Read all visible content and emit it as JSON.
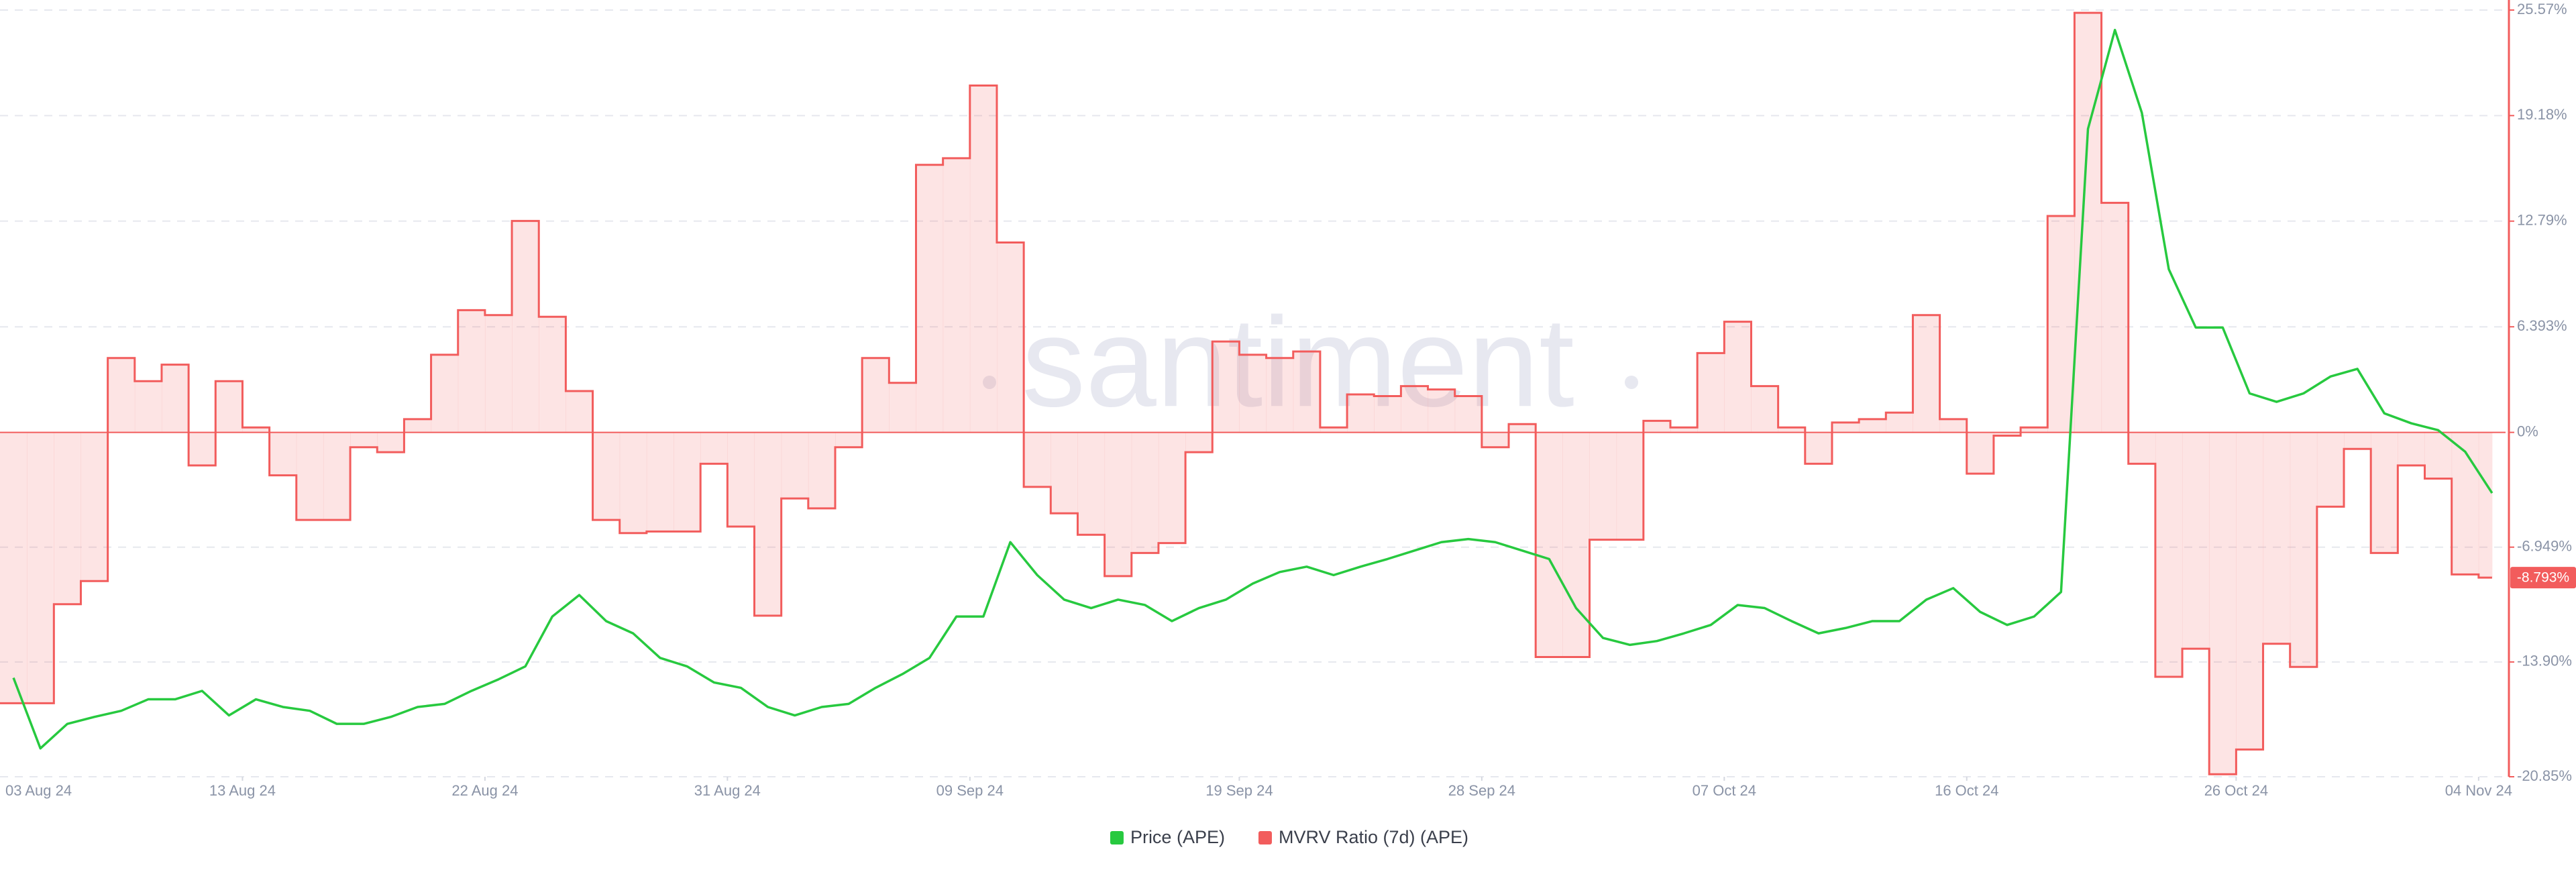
{
  "chart_data": {
    "type": "line",
    "watermark": "santiment",
    "x": [
      "2024-08-04",
      "2024-08-05",
      "2024-08-06",
      "2024-08-07",
      "2024-08-08",
      "2024-08-09",
      "2024-08-10",
      "2024-08-11",
      "2024-08-12",
      "2024-08-13",
      "2024-08-14",
      "2024-08-15",
      "2024-08-16",
      "2024-08-17",
      "2024-08-18",
      "2024-08-19",
      "2024-08-20",
      "2024-08-21",
      "2024-08-22",
      "2024-08-23",
      "2024-08-24",
      "2024-08-25",
      "2024-08-26",
      "2024-08-27",
      "2024-08-28",
      "2024-08-29",
      "2024-08-30",
      "2024-08-31",
      "2024-09-01",
      "2024-09-02",
      "2024-09-03",
      "2024-09-04",
      "2024-09-05",
      "2024-09-06",
      "2024-09-07",
      "2024-09-08",
      "2024-09-09",
      "2024-09-10",
      "2024-09-11",
      "2024-09-12",
      "2024-09-13",
      "2024-09-14",
      "2024-09-15",
      "2024-09-16",
      "2024-09-17",
      "2024-09-18",
      "2024-09-19",
      "2024-09-20",
      "2024-09-21",
      "2024-09-22",
      "2024-09-23",
      "2024-09-24",
      "2024-09-25",
      "2024-09-26",
      "2024-09-27",
      "2024-09-28",
      "2024-09-29",
      "2024-09-30",
      "2024-10-01",
      "2024-10-02",
      "2024-10-03",
      "2024-10-04",
      "2024-10-05",
      "2024-10-06",
      "2024-10-07",
      "2024-10-08",
      "2024-10-09",
      "2024-10-10",
      "2024-10-11",
      "2024-10-12",
      "2024-10-13",
      "2024-10-14",
      "2024-10-15",
      "2024-10-16",
      "2024-10-17",
      "2024-10-18",
      "2024-10-19",
      "2024-10-20",
      "2024-10-21",
      "2024-10-22",
      "2024-10-23",
      "2024-10-24",
      "2024-10-25",
      "2024-10-26",
      "2024-10-27",
      "2024-10-28",
      "2024-10-29",
      "2024-10-30",
      "2024-10-31",
      "2024-11-01",
      "2024-11-02",
      "2024-11-03",
      "2024-11-04"
    ],
    "xlim": [
      "2024-08-04",
      "2024-11-05"
    ],
    "xticks": [
      {
        "value": "2024-08-03",
        "label": "03 Aug 24"
      },
      {
        "value": "2024-08-13",
        "label": "13 Aug 24"
      },
      {
        "value": "2024-08-22",
        "label": "22 Aug 24"
      },
      {
        "value": "2024-08-31",
        "label": "31 Aug 24"
      },
      {
        "value": "2024-09-09",
        "label": "09 Sep 24"
      },
      {
        "value": "2024-09-19",
        "label": "19 Sep 24"
      },
      {
        "value": "2024-09-28",
        "label": "28 Sep 24"
      },
      {
        "value": "2024-10-07",
        "label": "07 Oct 24"
      },
      {
        "value": "2024-10-16",
        "label": "16 Oct 24"
      },
      {
        "value": "2024-10-26",
        "label": "26 Oct 24"
      },
      {
        "value": "2024-11-04",
        "label": "04 Nov 24"
      }
    ],
    "ylim": [
      -20.85,
      25.57
    ],
    "yticks": [
      {
        "value": 25.57,
        "label": "25.57%"
      },
      {
        "value": 19.18,
        "label": "19.18%"
      },
      {
        "value": 12.79,
        "label": "12.79%"
      },
      {
        "value": 6.393,
        "label": "6.393%"
      },
      {
        "value": 0,
        "label": "0%"
      },
      {
        "value": -6.949,
        "label": "-6.949%"
      },
      {
        "value": -13.9,
        "label": "-13.90%"
      },
      {
        "value": -20.85,
        "label": "-20.85%"
      }
    ],
    "y2lim": [
      0.6,
      1.6
    ],
    "grid": true,
    "legend": "bottom",
    "series": [
      {
        "name": "Price (APE)",
        "color": "#27c93f",
        "axis": "y2",
        "style": "line",
        "values": [
          0.729,
          0.637,
          0.669,
          0.678,
          0.686,
          0.701,
          0.701,
          0.712,
          0.68,
          0.701,
          0.691,
          0.686,
          0.669,
          0.669,
          0.678,
          0.691,
          0.695,
          0.712,
          0.727,
          0.744,
          0.809,
          0.837,
          0.803,
          0.787,
          0.755,
          0.744,
          0.723,
          0.716,
          0.691,
          0.68,
          0.691,
          0.695,
          0.716,
          0.734,
          0.755,
          0.809,
          0.809,
          0.906,
          0.863,
          0.831,
          0.82,
          0.831,
          0.824,
          0.803,
          0.82,
          0.831,
          0.852,
          0.867,
          0.874,
          0.863,
          0.874,
          0.884,
          0.895,
          0.906,
          0.91,
          0.906,
          0.895,
          0.884,
          0.82,
          0.781,
          0.772,
          0.777,
          0.787,
          0.798,
          0.824,
          0.82,
          0.803,
          0.787,
          0.794,
          0.803,
          0.803,
          0.831,
          0.846,
          0.815,
          0.798,
          0.809,
          0.841,
          1.445,
          1.574,
          1.466,
          1.262,
          1.186,
          1.186,
          1.1,
          1.089,
          1.1,
          1.122,
          1.132,
          1.074,
          1.061,
          1.052,
          1.024,
          0.97
        ]
      },
      {
        "name": "MVRV Ratio (7d) (APE)",
        "color": "#f25c5c",
        "axis": "y",
        "style": "step-area",
        "values": [
          -16.4,
          -16.4,
          -10.4,
          -9.0,
          4.5,
          3.1,
          4.1,
          -2.0,
          3.1,
          0.3,
          -2.6,
          -5.3,
          -5.3,
          -0.9,
          -1.2,
          0.8,
          4.7,
          7.4,
          7.1,
          12.8,
          7.0,
          2.5,
          -5.3,
          -6.1,
          -6.0,
          -6.0,
          -1.9,
          -5.7,
          -11.1,
          -4.0,
          -4.6,
          -0.9,
          4.5,
          3.0,
          16.2,
          16.6,
          21.0,
          11.5,
          -3.3,
          -4.9,
          -6.2,
          -8.7,
          -7.3,
          -6.7,
          -1.2,
          5.5,
          4.7,
          4.5,
          4.9,
          0.3,
          2.3,
          2.2,
          2.8,
          2.6,
          2.2,
          -0.9,
          0.5,
          -13.6,
          -13.6,
          -6.5,
          -6.5,
          0.7,
          0.3,
          4.8,
          6.7,
          2.8,
          0.3,
          -1.9,
          0.6,
          0.8,
          1.2,
          7.1,
          0.8,
          -2.5,
          -0.2,
          0.3,
          13.1,
          25.4,
          13.9,
          -1.9,
          -14.8,
          -13.1,
          -20.7,
          -19.2,
          -12.8,
          -14.2,
          -4.5,
          -1.0,
          -7.3,
          -2.0,
          -2.8,
          -8.6,
          -8.793
        ],
        "value_labels": [
          null,
          null,
          null,
          null,
          null,
          null,
          null,
          null,
          null,
          null,
          null,
          null,
          null,
          null,
          null,
          null,
          null,
          null,
          null,
          null,
          null,
          null,
          null,
          null,
          null,
          null,
          null,
          null,
          null,
          null,
          null,
          null,
          null,
          null,
          null,
          null,
          null,
          null,
          null,
          null,
          null,
          null,
          null,
          null,
          null,
          null,
          null,
          null,
          null,
          null,
          null,
          null,
          null,
          null,
          null,
          null,
          null,
          null,
          null,
          null,
          null,
          null,
          null,
          null,
          null,
          null,
          null,
          null,
          null,
          null,
          null,
          null,
          null,
          null,
          null,
          null,
          null,
          null,
          null,
          null,
          null,
          null,
          null,
          null,
          null,
          null,
          null,
          null,
          null,
          null,
          null,
          null,
          "-8.793%"
        ]
      }
    ]
  }
}
